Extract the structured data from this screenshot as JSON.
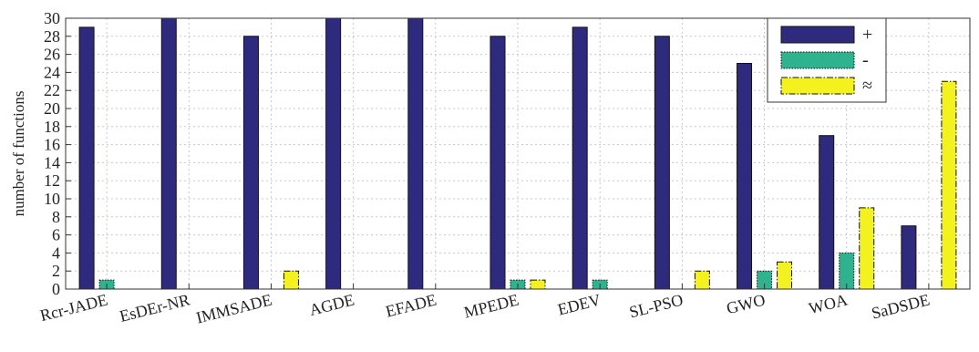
{
  "chart_data": {
    "type": "bar",
    "ylabel": "number of functions",
    "xlabel": "",
    "title": "",
    "ylim": [
      0,
      30
    ],
    "yticks": [
      0,
      2,
      4,
      6,
      8,
      10,
      12,
      14,
      16,
      18,
      20,
      22,
      24,
      26,
      28,
      30
    ],
    "grid": true,
    "legend_position": "top-right",
    "categories": [
      "Rcr-JADE",
      "EsDEr-NR",
      "IMMSADE",
      "AGDE",
      "EFADE",
      "MPEDE",
      "EDEV",
      "SL-PSO",
      "GWO",
      "WOA",
      "SaDSDE"
    ],
    "series": [
      {
        "name": "+",
        "color": "#2e2a7e",
        "pattern": "solid",
        "values": [
          29,
          30,
          28,
          30,
          30,
          28,
          29,
          28,
          25,
          17,
          7
        ]
      },
      {
        "name": "-",
        "color": "#2fb38f",
        "pattern": "dotted",
        "values": [
          1,
          0,
          0,
          0,
          0,
          1,
          1,
          0,
          2,
          4,
          0
        ]
      },
      {
        "name": "≈",
        "color": "#f4f21e",
        "pattern": "dashdot",
        "values": [
          0,
          0,
          2,
          0,
          0,
          1,
          0,
          2,
          3,
          9,
          23
        ]
      }
    ]
  }
}
